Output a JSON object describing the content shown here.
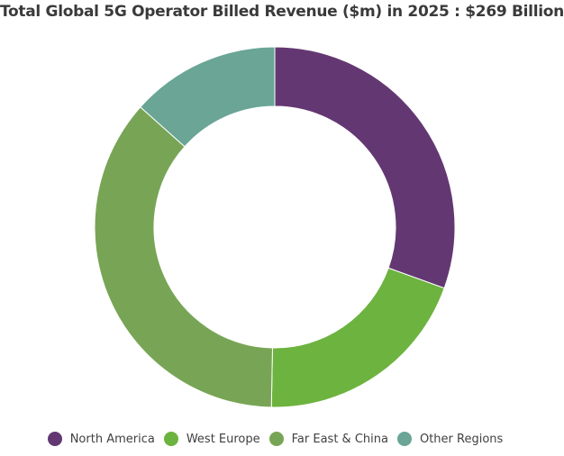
{
  "chart_data": {
    "type": "pie",
    "title": "Total Global 5G Operator Billed Revenue ($m) in 2025 : $269 Billion",
    "donut": true,
    "legend_position": "bottom",
    "series": [
      {
        "name": "",
        "values": [
          {
            "label": "North America",
            "value": 30.5,
            "color": "#633872"
          },
          {
            "label": "West Europe",
            "value": 19.8,
            "color": "#6db33f"
          },
          {
            "label": "Far East & China",
            "value": 36.3,
            "color": "#78a555"
          },
          {
            "label": "Other Regions",
            "value": 13.4,
            "color": "#6aa596"
          }
        ]
      }
    ],
    "legend": [
      {
        "label": "North America",
        "color": "#633872"
      },
      {
        "label": "West Europe",
        "color": "#6db33f"
      },
      {
        "label": "Far East & China",
        "color": "#78a555"
      },
      {
        "label": "Other Regions",
        "color": "#6aa596"
      }
    ]
  }
}
